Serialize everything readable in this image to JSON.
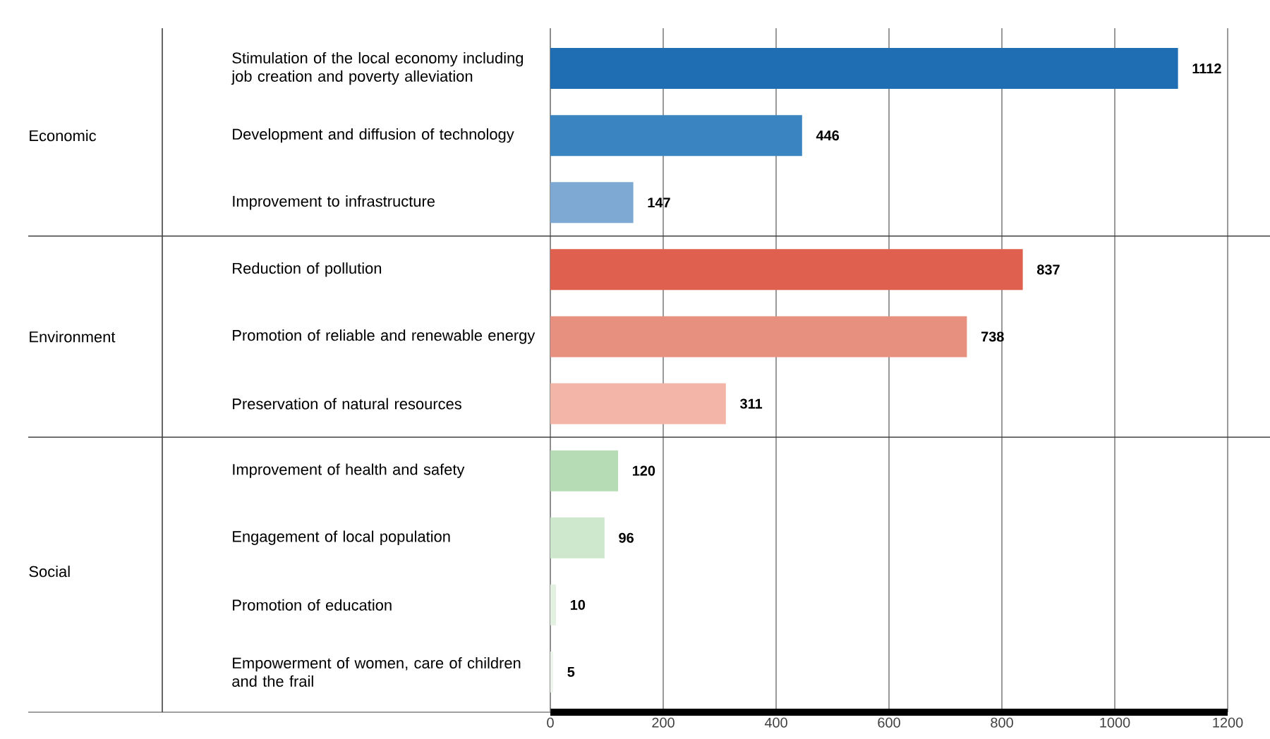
{
  "chart_data": {
    "type": "bar",
    "orientation": "horizontal",
    "categories": [
      "Stimulation of the local economy including job creation and poverty alleviation",
      "Development and diffusion of technology",
      "Improvement to infrastructure",
      "Reduction of pollution",
      "Promotion of reliable and renewable energy",
      "Preservation of natural resources",
      "Improvement of health and safety",
      "Engagement of local population",
      "Promotion of education",
      "Empowerment of women, care of children and the frail"
    ],
    "values": [
      1112,
      446,
      147,
      837,
      738,
      311,
      120,
      96,
      10,
      5
    ],
    "colors": [
      "#1f6db3",
      "#3a84c2",
      "#7ea9d3",
      "#e0604f",
      "#e8907f",
      "#f2b5a8",
      "#b5dcb5",
      "#cde8cc",
      "#e3f1e1",
      "#eef6ed"
    ],
    "xlim": [
      0,
      1200
    ],
    "xticks": [
      0,
      200,
      400,
      600,
      800,
      1000,
      1200
    ],
    "grid": "x",
    "data_labels": true,
    "annotations": [
      "Economic",
      "Environment",
      "Social"
    ]
  }
}
